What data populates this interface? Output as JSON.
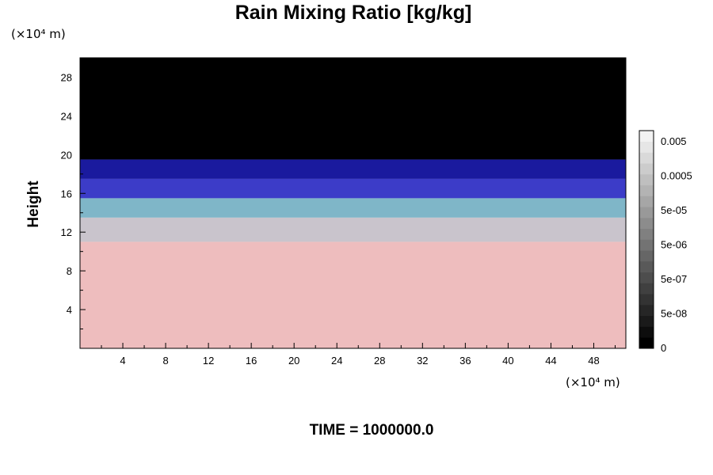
{
  "chart_data": {
    "type": "heatmap",
    "title": "Rain Mixing Ratio [kg/kg]",
    "ylabel": "Height",
    "xlabel": "",
    "x_unit": "(×10⁴ m)",
    "y_unit": "(×10⁴ m)",
    "footer": "TIME = 1000000.0",
    "xlim": [
      0,
      51
    ],
    "ylim": [
      0,
      30
    ],
    "xticks": [
      4,
      8,
      12,
      16,
      20,
      24,
      28,
      32,
      36,
      40,
      44,
      48
    ],
    "xtick_labels": [
      "4",
      "8",
      "12",
      "16",
      "20",
      "24",
      "28",
      "32",
      "36",
      "40",
      "44",
      "48"
    ],
    "yticks": [
      4,
      8,
      12,
      16,
      20,
      24,
      28
    ],
    "ytick_labels": [
      "4",
      "8",
      "12",
      "16",
      "20",
      "24",
      "28"
    ],
    "layers": [
      {
        "from": 0,
        "to": 11,
        "color": "#eebdbe"
      },
      {
        "from": 11,
        "to": 13.5,
        "color": "#c9c4cc"
      },
      {
        "from": 13.5,
        "to": 15.5,
        "color": "#7fb6c8"
      },
      {
        "from": 15.5,
        "to": 17.5,
        "color": "#3c3cc8"
      },
      {
        "from": 17.5,
        "to": 19.5,
        "color": "#1a1a9e"
      },
      {
        "from": 19.5,
        "to": 30,
        "color": "#000000"
      }
    ],
    "colorbar": {
      "tick_labels": [
        "0.005",
        "0.0005",
        "5e-05",
        "5e-06",
        "5e-07",
        "5e-08",
        "0"
      ],
      "colors": [
        "#000000",
        "#0d0d0d",
        "#1a1a1a",
        "#262626",
        "#333333",
        "#404040",
        "#4d4d4d",
        "#595959",
        "#666666",
        "#737373",
        "#808080",
        "#8c8c8c",
        "#999999",
        "#a6a6a6",
        "#b3b3b3",
        "#bfbfbf",
        "#cccccc",
        "#d9d9d9",
        "#e6e6e6",
        "#f2f2f2"
      ]
    }
  }
}
